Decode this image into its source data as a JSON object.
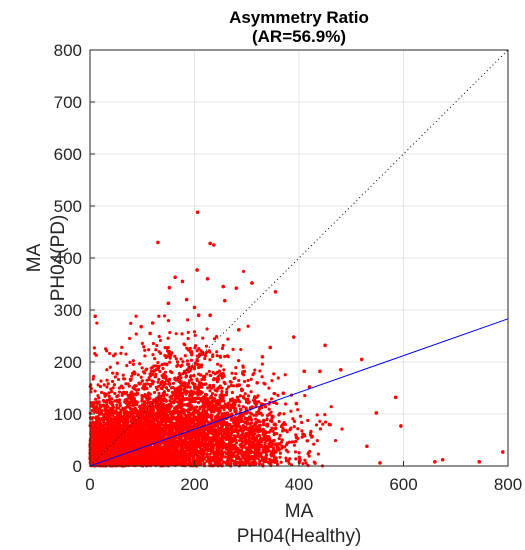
{
  "chart_data": {
    "type": "scatter",
    "title": "Asymmetry Ratio",
    "subtitle": "(AR=56.9%)",
    "xlabel": [
      "MA",
      "PH04(Healthy)"
    ],
    "ylabel": [
      "MA",
      "PH04(PD)"
    ],
    "xlim": [
      0,
      800
    ],
    "ylim": [
      0,
      800
    ],
    "xticks": [
      "0",
      "200",
      "400",
      "600",
      "800"
    ],
    "yticks": [
      "0",
      "100",
      "200",
      "300",
      "400",
      "500",
      "600",
      "700",
      "800"
    ],
    "grid": true,
    "colors": {
      "points": "#ff0000",
      "fit_line": "#0000ff",
      "identity_line": "#000000",
      "grid": "#e6e6e6",
      "axes": "#262626"
    },
    "series": [
      {
        "type": "scatter",
        "points": [
          [
            206,
            488
          ],
          [
            130,
            430
          ],
          [
            230,
            428
          ],
          [
            237,
            425
          ],
          [
            163,
            363
          ],
          [
            177,
            355
          ],
          [
            152,
            343
          ],
          [
            205,
            377
          ],
          [
            280,
            342
          ],
          [
            255,
            345
          ],
          [
            258,
            318
          ],
          [
            310,
            352
          ],
          [
            10,
            288
          ],
          [
            200,
            305
          ],
          [
            230,
            290
          ],
          [
            208,
            290
          ],
          [
            120,
            275
          ],
          [
            285,
            262
          ],
          [
            225,
            360
          ],
          [
            355,
            335
          ],
          [
            150,
            313
          ],
          [
            185,
            320
          ],
          [
            98,
            268
          ],
          [
            115,
            255
          ],
          [
            450,
            232
          ],
          [
            520,
            205
          ],
          [
            480,
            185
          ],
          [
            440,
            182
          ],
          [
            585,
            132
          ],
          [
            410,
            182
          ],
          [
            548,
            102
          ],
          [
            420,
            152
          ],
          [
            595,
            77
          ],
          [
            530,
            38
          ],
          [
            790,
            27
          ],
          [
            675,
            12
          ],
          [
            660,
            8
          ],
          [
            745,
            8
          ],
          [
            555,
            6
          ],
          [
            410,
            60
          ],
          [
            458,
            80
          ],
          [
            395,
            120
          ],
          [
            370,
            140
          ],
          [
            350,
            95
          ],
          [
            345,
            228
          ],
          [
            390,
            248
          ],
          [
            330,
            210
          ],
          [
            320,
            160
          ]
        ],
        "cloud_clusters": [
          {
            "cx": 120,
            "cy": 55,
            "sx": 85,
            "sy": 45,
            "n": 2400
          },
          {
            "cx": 60,
            "cy": 30,
            "sx": 45,
            "sy": 30,
            "n": 1800
          },
          {
            "cx": 200,
            "cy": 80,
            "sx": 70,
            "sy": 55,
            "n": 900
          },
          {
            "cx": 280,
            "cy": 60,
            "sx": 55,
            "sy": 45,
            "n": 500
          },
          {
            "cx": 330,
            "cy": 40,
            "sx": 55,
            "sy": 35,
            "n": 250
          },
          {
            "cx": 160,
            "cy": 160,
            "sx": 70,
            "sy": 50,
            "n": 450
          }
        ]
      },
      {
        "type": "line",
        "name": "fit",
        "x": [
          0,
          800
        ],
        "y": [
          0,
          283
        ]
      },
      {
        "type": "line",
        "name": "identity",
        "x": [
          0,
          800
        ],
        "y": [
          0,
          800
        ]
      }
    ]
  }
}
